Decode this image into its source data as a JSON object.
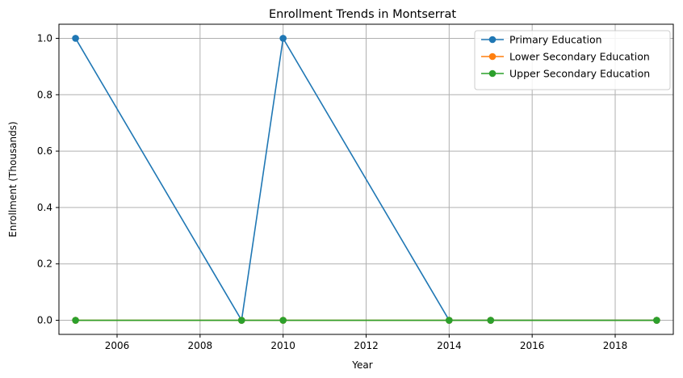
{
  "chart_data": {
    "type": "line",
    "title": "Enrollment Trends in Montserrat",
    "xlabel": "Year",
    "ylabel": "Enrollment (Thousands)",
    "xlim": [
      2004.6,
      2019.4
    ],
    "ylim": [
      -0.05,
      1.05
    ],
    "xticks": [
      2006,
      2008,
      2010,
      2012,
      2014,
      2016,
      2018
    ],
    "yticks": [
      0.0,
      0.2,
      0.4,
      0.6,
      0.8,
      1.0
    ],
    "xtick_labels": [
      "2006",
      "2008",
      "2010",
      "2012",
      "2014",
      "2016",
      "2018"
    ],
    "ytick_labels": [
      "0.0",
      "0.2",
      "0.4",
      "0.6",
      "0.8",
      "1.0"
    ],
    "x": [
      2005,
      2009,
      2010,
      2014,
      2015,
      2019
    ],
    "grid": true,
    "legend_position": "top-right",
    "series": [
      {
        "name": "Primary Education",
        "color": "#1f77b4",
        "values": [
          1,
          0,
          1,
          0,
          0,
          0
        ]
      },
      {
        "name": "Lower Secondary Education",
        "color": "#ff7f0e",
        "values": [
          0,
          0,
          0,
          0,
          0,
          0
        ]
      },
      {
        "name": "Upper Secondary Education",
        "color": "#2ca02c",
        "values": [
          0,
          0,
          0,
          0,
          0,
          0
        ]
      }
    ]
  }
}
